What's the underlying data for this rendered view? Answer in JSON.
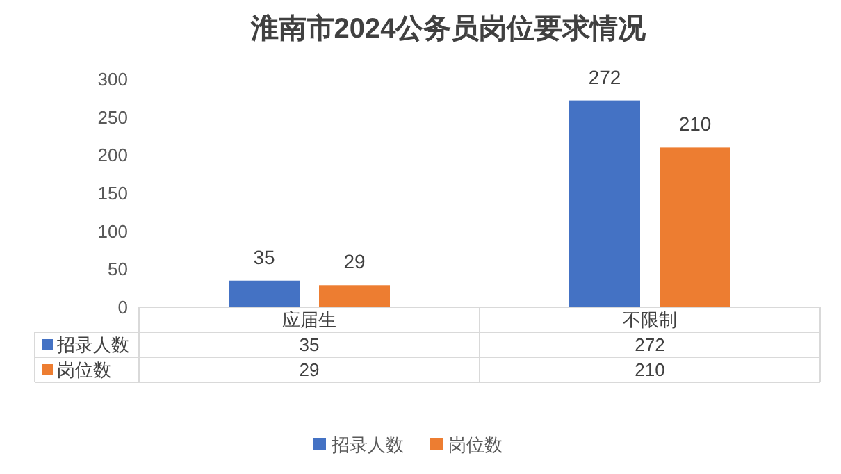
{
  "chart_data": {
    "type": "bar",
    "title": "淮南市2024公务员岗位要求情况",
    "categories": [
      "应届生",
      "不限制"
    ],
    "series": [
      {
        "name": "招录人数",
        "color": "#4472c4",
        "values": [
          35,
          272
        ],
        "value_labels": [
          "35",
          "272"
        ]
      },
      {
        "name": "岗位数",
        "color": "#ed7d31",
        "values": [
          29,
          210
        ],
        "value_labels": [
          "29",
          "210"
        ]
      }
    ],
    "ylim": [
      0,
      300
    ],
    "yticks": [
      0,
      50,
      100,
      150,
      200,
      250,
      300
    ],
    "annotations": [
      "35",
      "272",
      "29",
      "210"
    ],
    "legend": "bottom"
  }
}
